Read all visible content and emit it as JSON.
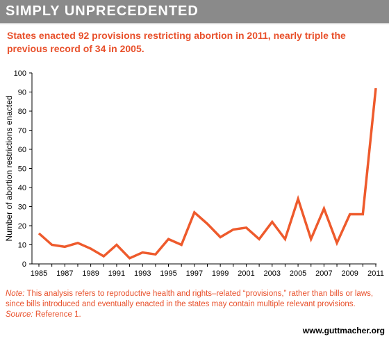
{
  "banner": {
    "title": "SIMPLY UNPRECEDENTED"
  },
  "colors": {
    "accent": "#e8502b",
    "banner": "#8a8a8a",
    "line": "#ee5a2c"
  },
  "chart_data": {
    "type": "line",
    "title": "States enacted 92 provisions restricting abortion in 2011, nearly triple the previous record of 34 in 2005.",
    "ylabel": "Number of abortion restrictions enacted",
    "xlabel": "",
    "ylim": [
      0,
      100
    ],
    "yticks": [
      0,
      10,
      20,
      30,
      40,
      50,
      60,
      70,
      80,
      90,
      100
    ],
    "xticks": [
      1985,
      1987,
      1989,
      1991,
      1993,
      1995,
      1997,
      1999,
      2001,
      2003,
      2005,
      2007,
      2009,
      2011
    ],
    "grid": false,
    "x": [
      1985,
      1986,
      1987,
      1988,
      1989,
      1990,
      1991,
      1992,
      1993,
      1994,
      1995,
      1996,
      1997,
      1998,
      1999,
      2000,
      2001,
      2002,
      2003,
      2004,
      2005,
      2006,
      2007,
      2008,
      2009,
      2010,
      2011
    ],
    "series": [
      {
        "values": [
          16,
          10,
          9,
          11,
          8,
          4,
          10,
          3,
          6,
          5,
          13,
          10,
          27,
          21,
          14,
          18,
          19,
          13,
          22,
          13,
          34,
          13,
          29,
          11,
          26,
          26,
          92
        ]
      }
    ]
  },
  "note": {
    "label": "Note:",
    "text": "This analysis refers to reproductive health and rights–related “provisions,” rather than bills or laws, since bills introduced and eventually enacted in the states may contain multiple relevant provisions.",
    "source_label": "Source:",
    "source_text": "Reference 1."
  },
  "footer": {
    "url": "www.guttmacher.org"
  }
}
